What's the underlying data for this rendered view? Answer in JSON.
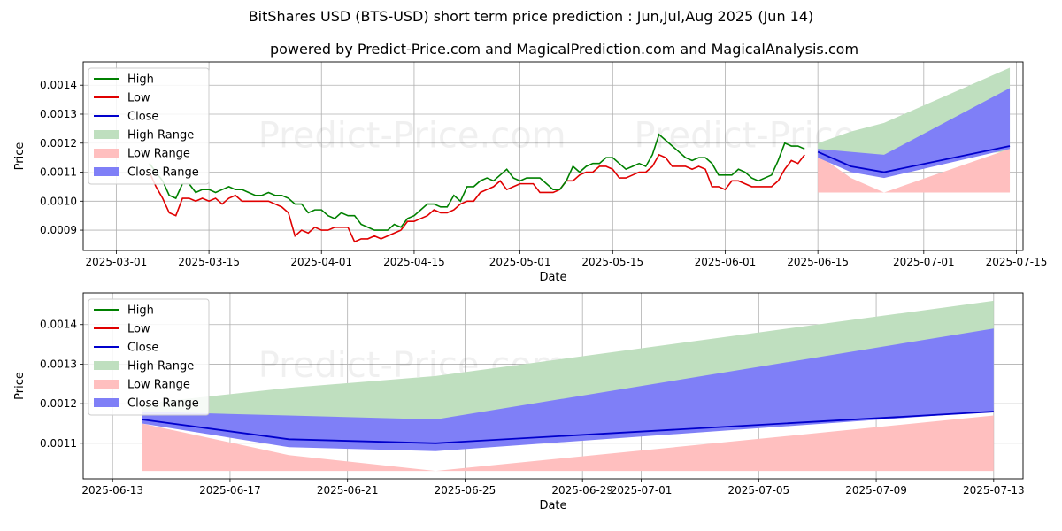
{
  "title": "BitShares USD (BTS-USD) short term price prediction : Jun,Jul,Aug 2025 (Jun 14)",
  "subtitle": "powered by Predict-Price.com and MagicalPrediction.com and MagicalAnalysis.com",
  "watermark": "Predict-Price.com",
  "colors": {
    "high": "#008000",
    "low": "#e00000",
    "close": "#0000cc",
    "high_range": "#bfdfbf",
    "low_range": "#ffbfbf",
    "close_range": "#7f7ff7"
  },
  "chart_data": [
    {
      "type": "line",
      "name": "history-and-forecast",
      "xlabel": "Date",
      "ylabel": "Price",
      "xlim": [
        -5,
        137
      ],
      "ylim": [
        0.00083,
        0.00148
      ],
      "x_ticks": [
        {
          "x": 0,
          "label": "2025-03-01"
        },
        {
          "x": 14,
          "label": "2025-03-15"
        },
        {
          "x": 31,
          "label": "2025-04-01"
        },
        {
          "x": 45,
          "label": "2025-04-15"
        },
        {
          "x": 61,
          "label": "2025-05-01"
        },
        {
          "x": 75,
          "label": "2025-05-15"
        },
        {
          "x": 92,
          "label": "2025-06-01"
        },
        {
          "x": 106,
          "label": "2025-06-15"
        },
        {
          "x": 122,
          "label": "2025-07-01"
        },
        {
          "x": 136,
          "label": "2025-07-15"
        }
      ],
      "y_ticks": [
        {
          "v": 0.0009,
          "label": "0.0009"
        },
        {
          "v": 0.001,
          "label": "0.0010"
        },
        {
          "v": 0.0011,
          "label": "0.0011"
        },
        {
          "v": 0.0012,
          "label": "0.0012"
        },
        {
          "v": 0.0013,
          "label": "0.0013"
        },
        {
          "v": 0.0014,
          "label": "0.0014"
        }
      ],
      "legend": [
        "High",
        "Low",
        "Close",
        "High Range",
        "Low Range",
        "Close Range"
      ],
      "legend_position": "top-left",
      "grid": true,
      "history": {
        "x_start": 5,
        "high": [
          0.00113,
          0.0011,
          0.00107,
          0.00102,
          0.00101,
          0.00106,
          0.00106,
          0.00103,
          0.00104,
          0.00104,
          0.00103,
          0.00104,
          0.00105,
          0.00104,
          0.00104,
          0.00103,
          0.00102,
          0.00102,
          0.00103,
          0.00102,
          0.00102,
          0.00101,
          0.00099,
          0.00099,
          0.00096,
          0.00097,
          0.00097,
          0.00095,
          0.00094,
          0.00096,
          0.00095,
          0.00095,
          0.00092,
          0.00091,
          0.0009,
          0.0009,
          0.0009,
          0.00092,
          0.00091,
          0.00094,
          0.00095,
          0.00097,
          0.00099,
          0.00099,
          0.00098,
          0.00098,
          0.00102,
          0.001,
          0.00105,
          0.00105,
          0.00107,
          0.00108,
          0.00107,
          0.00109,
          0.00111,
          0.00108,
          0.00107,
          0.00108,
          0.00108,
          0.00108,
          0.00106,
          0.00104,
          0.00104,
          0.00107,
          0.00112,
          0.0011,
          0.00112,
          0.00113,
          0.00113,
          0.00115,
          0.00115,
          0.00113,
          0.00111,
          0.00112,
          0.00113,
          0.00112,
          0.00116,
          0.00123,
          0.00121,
          0.00119,
          0.00117,
          0.00115,
          0.00114,
          0.00115,
          0.00115,
          0.00113,
          0.00109,
          0.00109,
          0.00109,
          0.00111,
          0.0011,
          0.00108,
          0.00107,
          0.00108,
          0.00109,
          0.00114,
          0.0012,
          0.00119,
          0.00119,
          0.00118
        ],
        "low": [
          0.0011,
          0.00105,
          0.00101,
          0.00096,
          0.00095,
          0.00101,
          0.00101,
          0.001,
          0.00101,
          0.001,
          0.00101,
          0.00099,
          0.00101,
          0.00102,
          0.001,
          0.001,
          0.001,
          0.001,
          0.001,
          0.00099,
          0.00098,
          0.00096,
          0.00088,
          0.0009,
          0.00089,
          0.00091,
          0.0009,
          0.0009,
          0.00091,
          0.00091,
          0.00091,
          0.00086,
          0.00087,
          0.00087,
          0.00088,
          0.00087,
          0.00088,
          0.00089,
          0.0009,
          0.00093,
          0.00093,
          0.00094,
          0.00095,
          0.00097,
          0.00096,
          0.00096,
          0.00097,
          0.00099,
          0.001,
          0.001,
          0.00103,
          0.00104,
          0.00105,
          0.00107,
          0.00104,
          0.00105,
          0.00106,
          0.00106,
          0.00106,
          0.00103,
          0.00103,
          0.00103,
          0.00104,
          0.00107,
          0.00107,
          0.00109,
          0.0011,
          0.0011,
          0.00112,
          0.00112,
          0.00111,
          0.00108,
          0.00108,
          0.00109,
          0.0011,
          0.0011,
          0.00112,
          0.00116,
          0.00115,
          0.00112,
          0.00112,
          0.00112,
          0.00111,
          0.00112,
          0.00111,
          0.00105,
          0.00105,
          0.00104,
          0.00107,
          0.00107,
          0.00106,
          0.00105,
          0.00105,
          0.00105,
          0.00105,
          0.00107,
          0.00111,
          0.00114,
          0.00113,
          0.00116
        ]
      },
      "forecast": {
        "x": [
          106,
          111,
          116,
          135
        ],
        "close": [
          0.00117,
          0.00112,
          0.0011,
          0.00119
        ],
        "high_range": [
          [
            0.00117,
            0.0012
          ],
          [
            0.00115,
            0.00124
          ],
          [
            0.00115,
            0.00127
          ],
          [
            0.00117,
            0.00146
          ]
        ],
        "low_range": [
          [
            0.00103,
            0.00116
          ],
          [
            0.00103,
            0.00108
          ],
          [
            0.00103,
            0.00103
          ],
          [
            0.00103,
            0.00118
          ]
        ],
        "close_range": [
          [
            0.00115,
            0.00118
          ],
          [
            0.0011,
            0.00117
          ],
          [
            0.00108,
            0.00116
          ],
          [
            0.00118,
            0.00139
          ]
        ]
      }
    },
    {
      "type": "line",
      "name": "forecast-zoom",
      "xlabel": "Date",
      "ylabel": "Price",
      "xlim": [
        -1,
        31
      ],
      "ylim": [
        0.00101,
        0.00148
      ],
      "x_ticks": [
        {
          "x": 0,
          "label": "2025-06-13"
        },
        {
          "x": 4,
          "label": "2025-06-17"
        },
        {
          "x": 8,
          "label": "2025-06-21"
        },
        {
          "x": 12,
          "label": "2025-06-25"
        },
        {
          "x": 16,
          "label": "2025-06-29"
        },
        {
          "x": 18,
          "label": "2025-07-01"
        },
        {
          "x": 22,
          "label": "2025-07-05"
        },
        {
          "x": 26,
          "label": "2025-07-09"
        },
        {
          "x": 30,
          "label": "2025-07-13"
        }
      ],
      "y_ticks": [
        {
          "v": 0.0011,
          "label": "0.0011"
        },
        {
          "v": 0.0012,
          "label": "0.0012"
        },
        {
          "v": 0.0013,
          "label": "0.0013"
        },
        {
          "v": 0.0014,
          "label": "0.0014"
        }
      ],
      "legend": [
        "High",
        "Low",
        "Close",
        "High Range",
        "Low Range",
        "Close Range"
      ],
      "legend_position": "top-left",
      "grid": true,
      "forecast": {
        "x": [
          1,
          6,
          11,
          30
        ],
        "close": [
          0.00116,
          0.00111,
          0.0011,
          0.00118
        ],
        "high_range": [
          [
            0.00116,
            0.0012
          ],
          [
            0.00116,
            0.00124
          ],
          [
            0.00116,
            0.00127
          ],
          [
            0.00119,
            0.00146
          ]
        ],
        "low_range": [
          [
            0.00103,
            0.00115
          ],
          [
            0.00103,
            0.00107
          ],
          [
            0.00103,
            0.00103
          ],
          [
            0.00103,
            0.00117
          ]
        ],
        "close_range": [
          [
            0.00115,
            0.00118
          ],
          [
            0.00109,
            0.00117
          ],
          [
            0.00108,
            0.00116
          ],
          [
            0.00118,
            0.00139
          ]
        ]
      }
    }
  ]
}
